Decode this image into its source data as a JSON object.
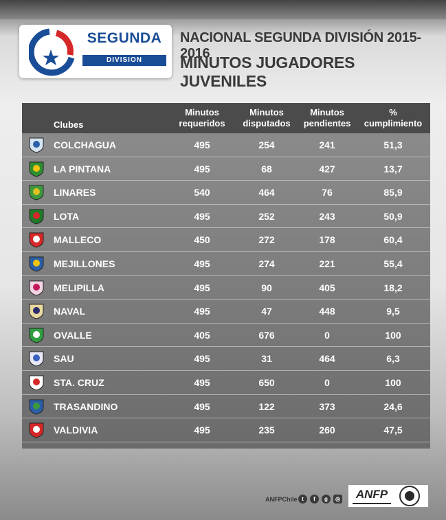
{
  "header": {
    "logo_title": "SEGUNDA",
    "logo_subtitle": "DIVISION",
    "title_line1": "NACIONAL SEGUNDA DIVISIÓN 2015-2016",
    "title_line2": "MINUTOS JUGADORES JUVENILES"
  },
  "table": {
    "headers": {
      "club": "Clubes",
      "required": [
        "Minutos",
        "requeridos"
      ],
      "played": [
        "Minutos",
        "disputados"
      ],
      "pending": [
        "Minutos",
        "pendientes"
      ],
      "percent": [
        "%",
        "cumplimiento"
      ]
    },
    "rows": [
      {
        "club": "COLCHAGUA",
        "required": "495",
        "played": "254",
        "pending": "241",
        "percent": "51,3",
        "crest_colors": [
          "#d6e4f2",
          "#2a5fa8"
        ]
      },
      {
        "club": "LA PINTANA",
        "required": "495",
        "played": "68",
        "pending": "427",
        "percent": "13,7",
        "crest_colors": [
          "#2f8f2f",
          "#f1c40f"
        ]
      },
      {
        "club": "LINARES",
        "required": "540",
        "played": "464",
        "pending": "76",
        "percent": "85,9",
        "crest_colors": [
          "#3c9a3c",
          "#e0c020"
        ]
      },
      {
        "club": "LOTA",
        "required": "495",
        "played": "252",
        "pending": "243",
        "percent": "50,9",
        "crest_colors": [
          "#1f7a2a",
          "#d62828"
        ]
      },
      {
        "club": "MALLECO",
        "required": "450",
        "played": "272",
        "pending": "178",
        "percent": "60,4",
        "crest_colors": [
          "#d62828",
          "#ffffff"
        ]
      },
      {
        "club": "MEJILLONES",
        "required": "495",
        "played": "274",
        "pending": "221",
        "percent": "55,4",
        "crest_colors": [
          "#2a5fa8",
          "#f1c40f"
        ]
      },
      {
        "club": "MELIPILLA",
        "required": "495",
        "played": "90",
        "pending": "405",
        "percent": "18,2",
        "crest_colors": [
          "#f2d4e4",
          "#c2185b"
        ]
      },
      {
        "club": "NAVAL",
        "required": "495",
        "played": "47",
        "pending": "448",
        "percent": "9,5",
        "crest_colors": [
          "#e8d9a0",
          "#2b2b6b"
        ]
      },
      {
        "club": "OVALLE",
        "required": "405",
        "played": "676",
        "pending": "0",
        "percent": "100",
        "crest_colors": [
          "#2f9f3f",
          "#ffffff"
        ]
      },
      {
        "club": "SAU",
        "required": "495",
        "played": "31",
        "pending": "464",
        "percent": "6,3",
        "crest_colors": [
          "#e8e8f8",
          "#3a5fbf"
        ]
      },
      {
        "club": "STA. CRUZ",
        "required": "495",
        "played": "650",
        "pending": "0",
        "percent": "100",
        "crest_colors": [
          "#ffffff",
          "#d62828"
        ]
      },
      {
        "club": "TRASANDINO",
        "required": "495",
        "played": "122",
        "pending": "373",
        "percent": "24,6",
        "crest_colors": [
          "#2a5fa8",
          "#3c9a3c"
        ]
      },
      {
        "club": "VALDIVIA",
        "required": "495",
        "played": "235",
        "pending": "260",
        "percent": "47,5",
        "crest_colors": [
          "#d62828",
          "#ffffff"
        ]
      }
    ]
  },
  "footer": {
    "handle": "ANFPChile",
    "social_icons": [
      "twitter-icon",
      "facebook-icon",
      "google-plus-icon",
      "instagram-icon"
    ],
    "brand": "ANFP"
  },
  "colors": {
    "brand_blue": "#1a4d97",
    "brand_red": "#d62828",
    "table_header": "#4b4b4b",
    "table_body": "#7e7e7e"
  }
}
